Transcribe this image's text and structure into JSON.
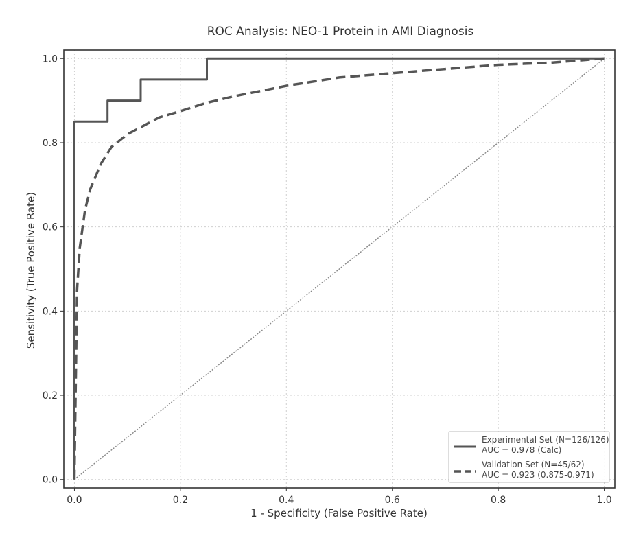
{
  "chart_data": {
    "type": "line",
    "title": "ROC Analysis: NEO-1 Protein in AMI Diagnosis",
    "xlabel": "1 - Specificity (False Positive Rate)",
    "ylabel": "Sensitivity (True Positive Rate)",
    "xlim": [
      0,
      1
    ],
    "ylim": [
      0,
      1
    ],
    "xticks": [
      "0.0",
      "0.2",
      "0.4",
      "0.6",
      "0.8",
      "1.0"
    ],
    "yticks": [
      "0.0",
      "0.2",
      "0.4",
      "0.6",
      "0.8",
      "1.0"
    ],
    "grid": true,
    "legend_position": "bottom-right",
    "series": [
      {
        "name": "Experimental Set (N=126/126)",
        "legend_sub": "AUC = 0.978 (Calc)",
        "style": "solid",
        "color": "#555555",
        "x": [
          0.0,
          0.0,
          0.0625,
          0.0625,
          0.125,
          0.125,
          0.25,
          0.25,
          1.0
        ],
        "y": [
          0.0,
          0.85,
          0.85,
          0.9,
          0.9,
          0.95,
          0.95,
          1.0,
          1.0
        ]
      },
      {
        "name": "Validation Set (N=45/62)",
        "legend_sub": "AUC = 0.923 (0.875-0.971)",
        "style": "dashed",
        "color": "#555555",
        "x": [
          0.0,
          0.005,
          0.01,
          0.02,
          0.03,
          0.05,
          0.07,
          0.1,
          0.13,
          0.16,
          0.2,
          0.25,
          0.3,
          0.4,
          0.5,
          0.6,
          0.7,
          0.8,
          0.9,
          1.0
        ],
        "y": [
          0.0,
          0.45,
          0.55,
          0.64,
          0.69,
          0.75,
          0.79,
          0.82,
          0.84,
          0.86,
          0.875,
          0.895,
          0.91,
          0.935,
          0.955,
          0.965,
          0.975,
          0.985,
          0.99,
          1.0
        ]
      },
      {
        "style": "dotted",
        "color": "#888888",
        "x": [
          0,
          1
        ],
        "y": [
          0,
          1
        ]
      }
    ]
  }
}
